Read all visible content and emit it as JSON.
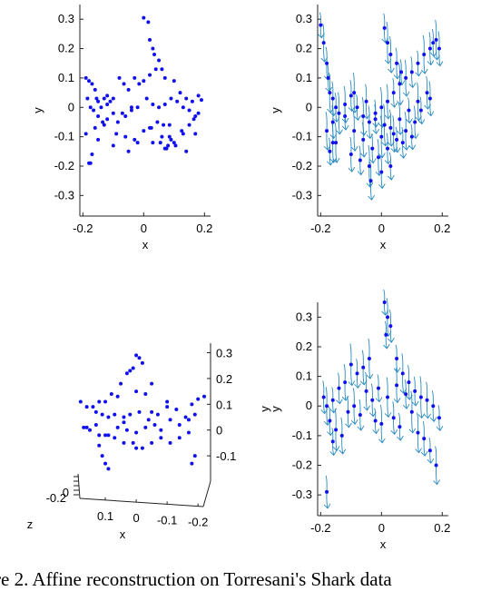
{
  "caption": "re 2. Affine reconstruction on Torresani's Shark data",
  "chart_data": [
    {
      "type": "scatter",
      "xlabel": "x",
      "ylabel": "y",
      "xlim": [
        -0.21,
        0.22
      ],
      "ylim": [
        -0.37,
        0.35
      ],
      "xticks": [
        "-0.2",
        "0",
        "0.2"
      ],
      "yticks": [
        "-0.3",
        "-0.2",
        "-0.1",
        "0",
        "0.1",
        "0.2",
        "0.3"
      ],
      "color": "#1010ee",
      "x": [
        0.0,
        0.015,
        0.02,
        0.03,
        0.035,
        0.05,
        0.06,
        -0.19,
        -0.18,
        -0.17,
        -0.16,
        -0.155,
        -0.15,
        -0.14,
        -0.13,
        -0.12,
        -0.11,
        -0.1,
        -0.08,
        -0.065,
        -0.05,
        -0.03,
        -0.015,
        0.0,
        0.02,
        0.04,
        0.07,
        0.1,
        0.12,
        0.14,
        0.16,
        0.18,
        0.19,
        -0.185,
        -0.175,
        -0.165,
        -0.15,
        -0.135,
        -0.12,
        -0.1,
        -0.085,
        -0.06,
        -0.04,
        -0.02,
        0.01,
        0.03,
        0.05,
        0.07,
        0.09,
        0.11,
        0.13,
        0.15,
        0.17,
        -0.19,
        -0.16,
        -0.13,
        -0.09,
        -0.06,
        -0.03,
        0.0,
        0.025,
        0.045,
        0.065,
        0.085,
        0.1,
        0.13,
        0.15,
        0.165,
        0.18,
        -0.18,
        -0.15,
        -0.1,
        -0.05,
        -0.02,
        0.055,
        0.07,
        0.08,
        0.09,
        -0.17,
        -0.175,
        0.14,
        0.17,
        -0.07,
        -0.04,
        0.02,
        0.03,
        0.075,
        0.105,
        -0.12,
        0.125,
        0.06,
        0.085
      ],
      "y": [
        0.305,
        0.29,
        0.23,
        0.2,
        0.18,
        0.16,
        0.13,
        0.1,
        0.09,
        0.08,
        0.06,
        0.03,
        0.02,
        0.0,
        0.03,
        0.04,
        0.02,
        0.03,
        0.1,
        0.08,
        0.06,
        0.1,
        0.08,
        0.09,
        0.11,
        0.13,
        0.1,
        0.09,
        0.05,
        0.03,
        0.02,
        0.04,
        0.025,
        0.03,
        0.0,
        -0.01,
        -0.03,
        -0.05,
        -0.04,
        -0.02,
        -0.05,
        -0.03,
        -0.01,
        0.0,
        0.03,
        0.01,
        0.0,
        0.01,
        0.03,
        0.02,
        0.0,
        -0.01,
        -0.03,
        -0.09,
        -0.07,
        -0.06,
        -0.09,
        -0.1,
        -0.11,
        -0.08,
        -0.07,
        -0.05,
        -0.06,
        -0.1,
        -0.12,
        -0.09,
        -0.06,
        -0.04,
        -0.02,
        -0.19,
        -0.11,
        -0.13,
        -0.15,
        -0.12,
        -0.12,
        -0.14,
        -0.13,
        -0.11,
        -0.16,
        -0.19,
        -0.15,
        -0.09,
        -0.02,
        0.0,
        -0.07,
        -0.12,
        -0.14,
        -0.13,
        0.01,
        -0.08,
        -0.1,
        -0.06
      ]
    },
    {
      "type": "scatter",
      "xlabel": "x",
      "ylabel": "y",
      "xlim": [
        -0.21,
        0.22
      ],
      "ylim": [
        -0.37,
        0.35
      ],
      "xticks": [
        "-0.2",
        "0",
        "0.2"
      ],
      "yticks": [
        "-0.3",
        "-0.2",
        "-0.1",
        "0",
        "0.1",
        "0.2",
        "0.3"
      ],
      "color": "#1010ee",
      "arrow_color": "#2a8ac0",
      "x": [
        -0.2,
        -0.19,
        -0.18,
        -0.175,
        -0.17,
        -0.16,
        -0.15,
        -0.14,
        -0.12,
        -0.1,
        -0.08,
        -0.06,
        -0.04,
        -0.02,
        0.0,
        0.02,
        0.04,
        0.06,
        0.08,
        0.1,
        0.12,
        0.14,
        0.16,
        0.17,
        0.18,
        0.19,
        0.01,
        0.02,
        0.03,
        0.05,
        0.065,
        -0.18,
        -0.16,
        -0.12,
        -0.09,
        -0.06,
        -0.03,
        0.0,
        0.03,
        0.06,
        0.09,
        0.12,
        0.15,
        -0.17,
        -0.15,
        -0.1,
        -0.07,
        -0.04,
        -0.01,
        0.02,
        0.05,
        0.08,
        0.11,
        0.13,
        -0.09,
        -0.05,
        -0.02,
        0.01,
        0.04,
        0.07,
        0.1,
        -0.035,
        0.0,
        0.03,
        -0.16,
        0.16
      ],
      "y": [
        0.28,
        0.22,
        0.15,
        0.1,
        0.05,
        0.03,
        0.0,
        -0.02,
        0.01,
        0.04,
        0.0,
        -0.03,
        -0.05,
        -0.02,
        0.0,
        0.02,
        0.05,
        0.08,
        0.1,
        0.12,
        0.15,
        0.18,
        0.2,
        0.22,
        0.23,
        0.2,
        0.27,
        0.22,
        0.18,
        0.15,
        0.12,
        -0.08,
        -0.05,
        -0.03,
        -0.08,
        -0.11,
        -0.14,
        -0.1,
        -0.07,
        -0.04,
        -0.01,
        0.02,
        0.05,
        -0.15,
        -0.12,
        -0.16,
        -0.18,
        -0.2,
        -0.17,
        -0.14,
        -0.11,
        -0.08,
        -0.05,
        -0.01,
        0.05,
        0.02,
        -0.04,
        -0.06,
        -0.09,
        -0.12,
        -0.1,
        -0.25,
        -0.22,
        -0.2,
        -0.12,
        0.03
      ],
      "arrows": "vertical field line through each point"
    },
    {
      "type": "scatter",
      "xlabel": "x",
      "ylabel": "",
      "zlabel": "z",
      "xticks": [
        "0.1",
        "0",
        "-0.1",
        "-0.2"
      ],
      "zticks": [
        "0.3",
        "0.2",
        "0.1",
        "0",
        "-0.1"
      ],
      "ztick_left": [
        "0",
        "-0.2"
      ],
      "xlim": [
        0.2,
        -0.22
      ],
      "zlim": [
        -0.17,
        0.33
      ],
      "color": "#1010ee",
      "x": [
        0.0,
        -0.01,
        -0.02,
        0.01,
        0.02,
        0.03,
        0.05,
        0.0,
        -0.03,
        -0.05,
        0.06,
        0.08,
        0.1,
        0.12,
        0.14,
        0.16,
        0.18,
        0.13,
        0.11,
        0.09,
        0.07,
        0.04,
        0.02,
        -0.01,
        -0.04,
        -0.07,
        -0.1,
        -0.13,
        -0.16,
        -0.18,
        -0.2,
        -0.22,
        -0.17,
        -0.14,
        -0.11,
        -0.08,
        -0.06,
        -0.03,
        0.0,
        0.03,
        0.06,
        0.09,
        0.12,
        0.15,
        0.17,
        0.16,
        0.13,
        0.1,
        0.07,
        0.04,
        0.01,
        -0.02,
        -0.05,
        -0.08,
        -0.11,
        -0.14,
        -0.17,
        -0.19,
        0.12,
        0.11,
        0.1,
        0.09,
        -0.18,
        -0.19,
        -0.1,
        -0.05,
        0.04,
        0.0
      ],
      "y": [
        0.29,
        0.28,
        0.26,
        0.24,
        0.23,
        0.22,
        0.18,
        0.15,
        0.14,
        0.18,
        0.13,
        0.14,
        0.11,
        0.11,
        0.09,
        0.09,
        0.11,
        0.07,
        0.06,
        0.05,
        0.06,
        0.05,
        0.06,
        0.07,
        0.04,
        0.06,
        0.11,
        0.08,
        0.05,
        0.1,
        0.12,
        0.13,
        0.04,
        0.02,
        0.04,
        0.0,
        0.02,
        0.01,
        -0.01,
        0.0,
        0.01,
        -0.02,
        -0.02,
        0.0,
        0.01,
        0.01,
        0.02,
        -0.02,
        -0.03,
        -0.05,
        -0.05,
        -0.07,
        -0.05,
        -0.03,
        -0.05,
        -0.03,
        -0.01,
        0.06,
        -0.06,
        -0.1,
        -0.13,
        -0.15,
        -0.13,
        -0.1,
        0.09,
        0.07,
        0.03,
        -0.07
      ]
    },
    {
      "type": "scatter",
      "xlabel": "x",
      "ylabel": "y",
      "ylabel_duplicate": "y",
      "xlim": [
        -0.21,
        0.22
      ],
      "ylim": [
        -0.37,
        0.35
      ],
      "xticks": [
        "-0.2",
        "0",
        "0.2"
      ],
      "yticks": [
        "-0.3",
        "-0.2",
        "-0.1",
        "0",
        "0.1",
        "0.2",
        "0.3"
      ],
      "color": "#1010ee",
      "arrow_color": "#2a8ac0",
      "x": [
        0.01,
        0.02,
        0.03,
        0.015,
        -0.04,
        -0.06,
        -0.08,
        -0.1,
        -0.12,
        -0.14,
        -0.16,
        -0.18,
        -0.19,
        0.05,
        0.07,
        0.09,
        0.11,
        0.13,
        0.15,
        0.17,
        0.19,
        -0.05,
        -0.03,
        -0.01,
        0.02,
        0.05,
        0.08,
        0.1,
        -0.09,
        -0.07,
        -0.02,
        0.0,
        0.04,
        0.06,
        0.12,
        0.14,
        -0.17,
        -0.15,
        -0.13,
        -0.11,
        0.16,
        0.18,
        -0.18,
        -0.16
      ],
      "y": [
        0.35,
        0.3,
        0.27,
        0.24,
        0.16,
        0.13,
        0.11,
        0.14,
        0.08,
        0.06,
        0.02,
        0.0,
        0.03,
        0.16,
        0.11,
        0.08,
        0.05,
        0.03,
        0.02,
        0.0,
        -0.04,
        0.05,
        0.02,
        0.06,
        0.03,
        0.07,
        0.04,
        -0.02,
        0.0,
        -0.03,
        -0.05,
        -0.06,
        -0.04,
        -0.07,
        -0.09,
        -0.11,
        -0.05,
        -0.08,
        -0.1,
        -0.02,
        -0.15,
        -0.2,
        -0.29,
        -0.12
      ],
      "arrows": "vertical field line through each point"
    }
  ]
}
